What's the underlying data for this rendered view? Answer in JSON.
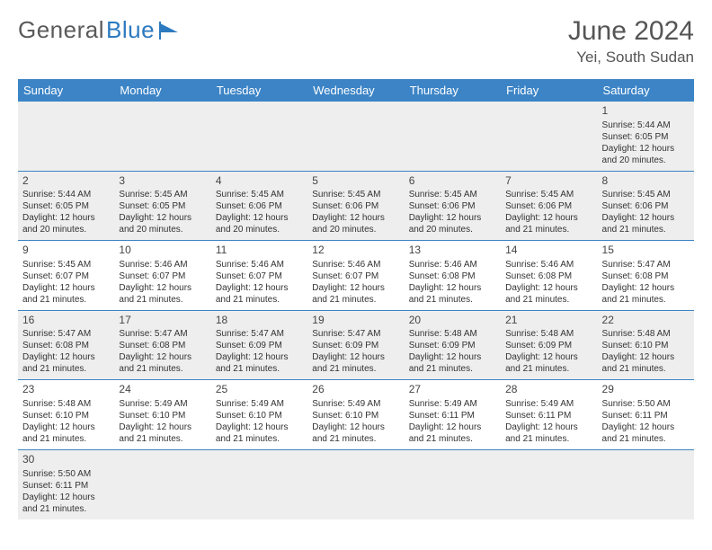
{
  "logo": {
    "part1": "General",
    "part2": "Blue"
  },
  "title": "June 2024",
  "location": "Yei, South Sudan",
  "colors": {
    "header_bg": "#3c84c6",
    "header_text": "#ffffff",
    "empty_bg": "#eeeeee",
    "divider": "#3c84c6",
    "logo_gray": "#5a5a5a",
    "logo_blue": "#2c7abf"
  },
  "day_headers": [
    "Sunday",
    "Monday",
    "Tuesday",
    "Wednesday",
    "Thursday",
    "Friday",
    "Saturday"
  ],
  "weeks": [
    [
      null,
      null,
      null,
      null,
      null,
      null,
      {
        "n": "1",
        "sr": "5:44 AM",
        "ss": "6:05 PM",
        "dl": "12 hours and 20 minutes."
      }
    ],
    [
      {
        "n": "2",
        "sr": "5:44 AM",
        "ss": "6:05 PM",
        "dl": "12 hours and 20 minutes."
      },
      {
        "n": "3",
        "sr": "5:45 AM",
        "ss": "6:05 PM",
        "dl": "12 hours and 20 minutes."
      },
      {
        "n": "4",
        "sr": "5:45 AM",
        "ss": "6:06 PM",
        "dl": "12 hours and 20 minutes."
      },
      {
        "n": "5",
        "sr": "5:45 AM",
        "ss": "6:06 PM",
        "dl": "12 hours and 20 minutes."
      },
      {
        "n": "6",
        "sr": "5:45 AM",
        "ss": "6:06 PM",
        "dl": "12 hours and 20 minutes."
      },
      {
        "n": "7",
        "sr": "5:45 AM",
        "ss": "6:06 PM",
        "dl": "12 hours and 21 minutes."
      },
      {
        "n": "8",
        "sr": "5:45 AM",
        "ss": "6:06 PM",
        "dl": "12 hours and 21 minutes."
      }
    ],
    [
      {
        "n": "9",
        "sr": "5:45 AM",
        "ss": "6:07 PM",
        "dl": "12 hours and 21 minutes."
      },
      {
        "n": "10",
        "sr": "5:46 AM",
        "ss": "6:07 PM",
        "dl": "12 hours and 21 minutes."
      },
      {
        "n": "11",
        "sr": "5:46 AM",
        "ss": "6:07 PM",
        "dl": "12 hours and 21 minutes."
      },
      {
        "n": "12",
        "sr": "5:46 AM",
        "ss": "6:07 PM",
        "dl": "12 hours and 21 minutes."
      },
      {
        "n": "13",
        "sr": "5:46 AM",
        "ss": "6:08 PM",
        "dl": "12 hours and 21 minutes."
      },
      {
        "n": "14",
        "sr": "5:46 AM",
        "ss": "6:08 PM",
        "dl": "12 hours and 21 minutes."
      },
      {
        "n": "15",
        "sr": "5:47 AM",
        "ss": "6:08 PM",
        "dl": "12 hours and 21 minutes."
      }
    ],
    [
      {
        "n": "16",
        "sr": "5:47 AM",
        "ss": "6:08 PM",
        "dl": "12 hours and 21 minutes."
      },
      {
        "n": "17",
        "sr": "5:47 AM",
        "ss": "6:08 PM",
        "dl": "12 hours and 21 minutes."
      },
      {
        "n": "18",
        "sr": "5:47 AM",
        "ss": "6:09 PM",
        "dl": "12 hours and 21 minutes."
      },
      {
        "n": "19",
        "sr": "5:47 AM",
        "ss": "6:09 PM",
        "dl": "12 hours and 21 minutes."
      },
      {
        "n": "20",
        "sr": "5:48 AM",
        "ss": "6:09 PM",
        "dl": "12 hours and 21 minutes."
      },
      {
        "n": "21",
        "sr": "5:48 AM",
        "ss": "6:09 PM",
        "dl": "12 hours and 21 minutes."
      },
      {
        "n": "22",
        "sr": "5:48 AM",
        "ss": "6:10 PM",
        "dl": "12 hours and 21 minutes."
      }
    ],
    [
      {
        "n": "23",
        "sr": "5:48 AM",
        "ss": "6:10 PM",
        "dl": "12 hours and 21 minutes."
      },
      {
        "n": "24",
        "sr": "5:49 AM",
        "ss": "6:10 PM",
        "dl": "12 hours and 21 minutes."
      },
      {
        "n": "25",
        "sr": "5:49 AM",
        "ss": "6:10 PM",
        "dl": "12 hours and 21 minutes."
      },
      {
        "n": "26",
        "sr": "5:49 AM",
        "ss": "6:10 PM",
        "dl": "12 hours and 21 minutes."
      },
      {
        "n": "27",
        "sr": "5:49 AM",
        "ss": "6:11 PM",
        "dl": "12 hours and 21 minutes."
      },
      {
        "n": "28",
        "sr": "5:49 AM",
        "ss": "6:11 PM",
        "dl": "12 hours and 21 minutes."
      },
      {
        "n": "29",
        "sr": "5:50 AM",
        "ss": "6:11 PM",
        "dl": "12 hours and 21 minutes."
      }
    ],
    [
      {
        "n": "30",
        "sr": "5:50 AM",
        "ss": "6:11 PM",
        "dl": "12 hours and 21 minutes."
      },
      null,
      null,
      null,
      null,
      null,
      null
    ]
  ],
  "labels": {
    "sunrise": "Sunrise:",
    "sunset": "Sunset:",
    "daylight": "Daylight:"
  }
}
